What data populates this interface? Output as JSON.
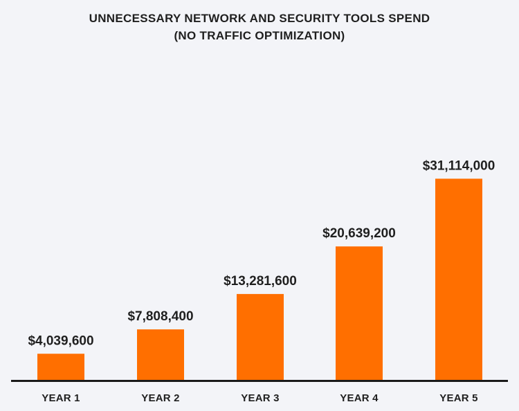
{
  "chart_data": {
    "type": "bar",
    "title": "UNNECESSARY NETWORK AND SECURITY TOOLS SPEND",
    "subtitle": "(NO TRAFFIC OPTIMIZATION)",
    "xlabel": "",
    "ylabel": "",
    "categories": [
      "YEAR 1",
      "YEAR 2",
      "YEAR 3",
      "YEAR 4",
      "YEAR 5"
    ],
    "values": [
      4039600,
      7808400,
      13281600,
      20639200,
      31114000
    ],
    "value_labels": [
      "$4,039,600",
      "$7,808,400",
      "$13,281,600",
      "$20,639,200",
      "$31,114,000"
    ],
    "ylim": [
      0,
      32000000
    ],
    "grid": false,
    "legend": "none",
    "colors": {
      "bar": "#ff6f00",
      "axis": "#1a1a1a",
      "background": "#f3f4f8",
      "text": "#1f1f1f"
    }
  }
}
